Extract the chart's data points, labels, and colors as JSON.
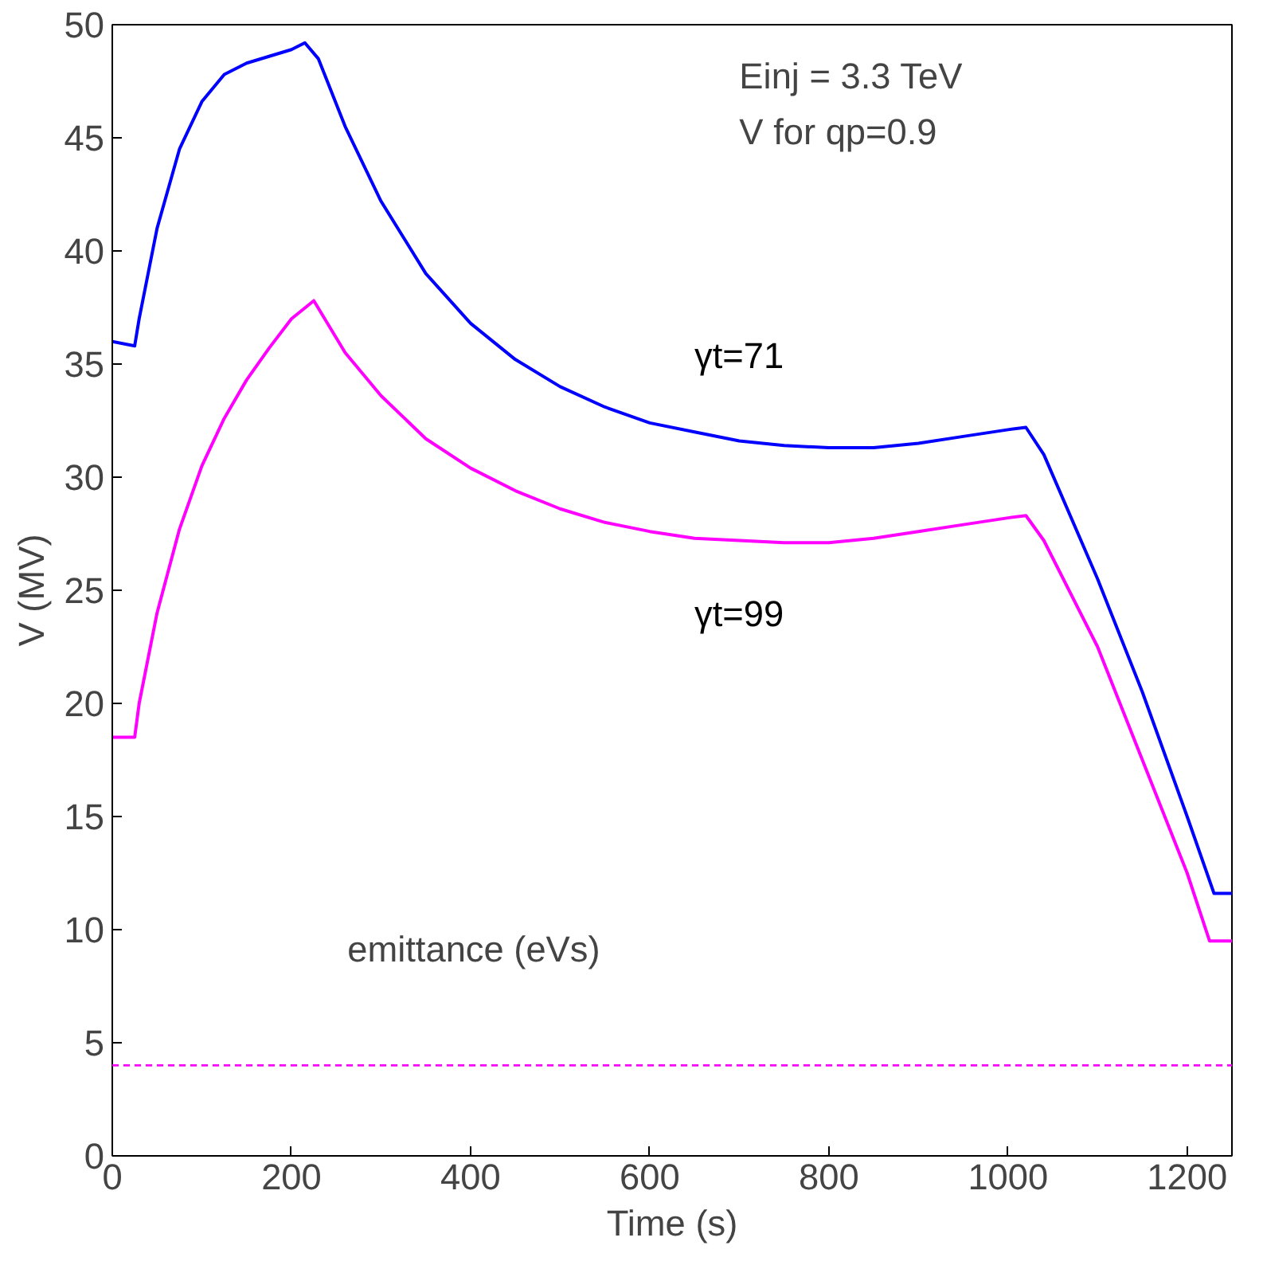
{
  "chart_data": {
    "type": "line",
    "xlabel": "Time (s)",
    "ylabel": "V (MV)",
    "xlim": [
      0,
      1250
    ],
    "ylim": [
      0,
      50
    ],
    "xticks": [
      0,
      200,
      400,
      600,
      800,
      1000,
      1200
    ],
    "yticks": [
      0,
      5,
      10,
      15,
      20,
      25,
      30,
      35,
      40,
      45,
      50
    ],
    "grid": false,
    "legend": false,
    "marker": "none",
    "line_style": "solid",
    "x": [
      0,
      25,
      30,
      50,
      75,
      100,
      125,
      150,
      175,
      200,
      215,
      230,
      260,
      300,
      350,
      400,
      450,
      500,
      550,
      600,
      650,
      700,
      750,
      800,
      850,
      900,
      950,
      1000,
      1020,
      1040,
      1100,
      1150,
      1200,
      1230,
      1250
    ],
    "series": [
      {
        "name": "γt=71",
        "color": "#0000ff",
        "values": [
          36,
          35.8,
          37,
          41,
          44.5,
          46.6,
          47.8,
          48.3,
          48.6,
          48.9,
          49.2,
          48.5,
          45.5,
          42.2,
          39,
          36.8,
          35.2,
          34,
          33.1,
          32.4,
          32,
          31.6,
          31.4,
          31.3,
          31.3,
          31.5,
          31.8,
          32.1,
          32.2,
          31,
          25.5,
          20.5,
          15,
          11.6,
          11.6
        ]
      },
      {
        "name": "γt=99",
        "color": "#ff00ff",
        "x": [
          0,
          25,
          30,
          50,
          75,
          100,
          125,
          150,
          175,
          200,
          225,
          260,
          300,
          350,
          400,
          450,
          500,
          550,
          600,
          650,
          700,
          750,
          800,
          850,
          900,
          950,
          1000,
          1020,
          1040,
          1100,
          1150,
          1200,
          1225,
          1250
        ],
        "values": [
          18.5,
          18.5,
          20,
          24,
          27.7,
          30.5,
          32.6,
          34.3,
          35.7,
          37,
          37.8,
          35.5,
          33.6,
          31.7,
          30.4,
          29.4,
          28.6,
          28,
          27.6,
          27.3,
          27.2,
          27.1,
          27.1,
          27.3,
          27.6,
          27.9,
          28.2,
          28.3,
          27.2,
          22.5,
          17.5,
          12.5,
          9.5,
          9.5
        ]
      }
    ],
    "ref_lines": [
      {
        "axis": "y",
        "value": 4,
        "label": "emittance (eVs)",
        "color": "#ff00ff",
        "line_style": "dashed"
      }
    ],
    "annotations": [
      "Einj = 3.3 TeV",
      "V for qp=0.9"
    ]
  }
}
